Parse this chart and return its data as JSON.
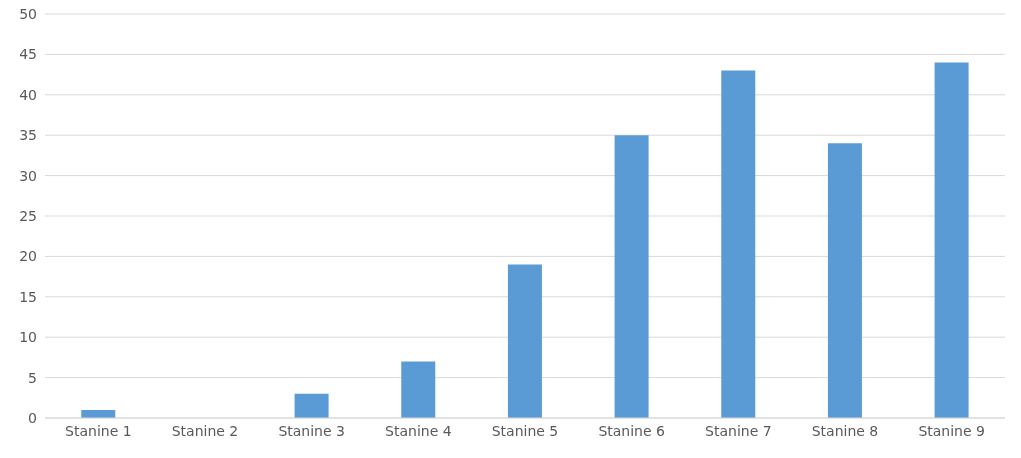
{
  "chart_data": {
    "type": "bar",
    "categories": [
      "Stanine 1",
      "Stanine 2",
      "Stanine 3",
      "Stanine 4",
      "Stanine 5",
      "Stanine 6",
      "Stanine 7",
      "Stanine 8",
      "Stanine 9"
    ],
    "values": [
      1,
      0,
      3,
      7,
      19,
      35,
      43,
      34,
      44
    ],
    "color": "#5b9bd5",
    "ylim": [
      0,
      50
    ],
    "yticks": [
      0,
      5,
      10,
      15,
      20,
      25,
      30,
      35,
      40,
      45,
      50
    ],
    "grid": "y",
    "legend": false
  }
}
